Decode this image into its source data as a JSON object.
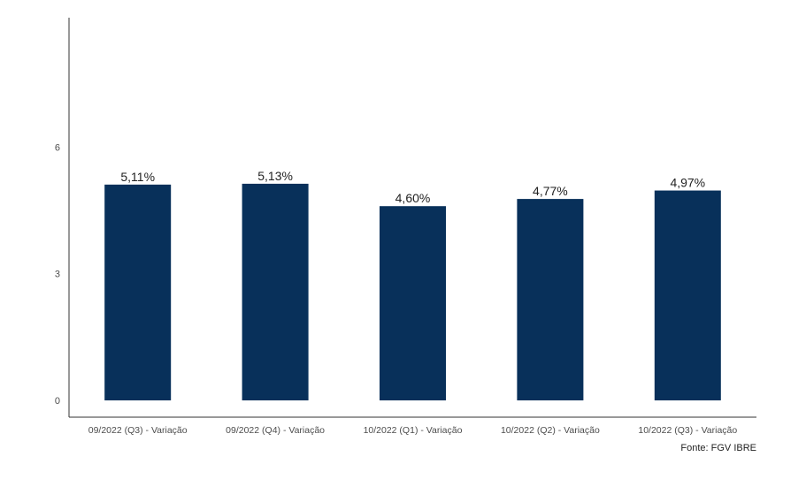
{
  "chart_data": {
    "type": "bar",
    "categories": [
      "09/2022 (Q3) - Variação",
      "09/2022 (Q4) - Variação",
      "10/2022 (Q1) - Variação",
      "10/2022 (Q2) - Variação",
      "10/2022 (Q3) - Variação"
    ],
    "values": [
      5.11,
      5.13,
      4.6,
      4.77,
      4.97
    ],
    "data_labels": [
      "5,11%",
      "5,13%",
      "4,60%",
      "4,77%",
      "4,97%"
    ],
    "yticks": [
      0,
      3,
      6
    ],
    "ytick_labels": [
      "0",
      "3",
      "6"
    ],
    "ylim": [
      0,
      9
    ],
    "bar_color": "#08305a",
    "axis_color": "#333333",
    "grid": false,
    "legend": "none"
  },
  "source": "Fonte: FGV IBRE"
}
